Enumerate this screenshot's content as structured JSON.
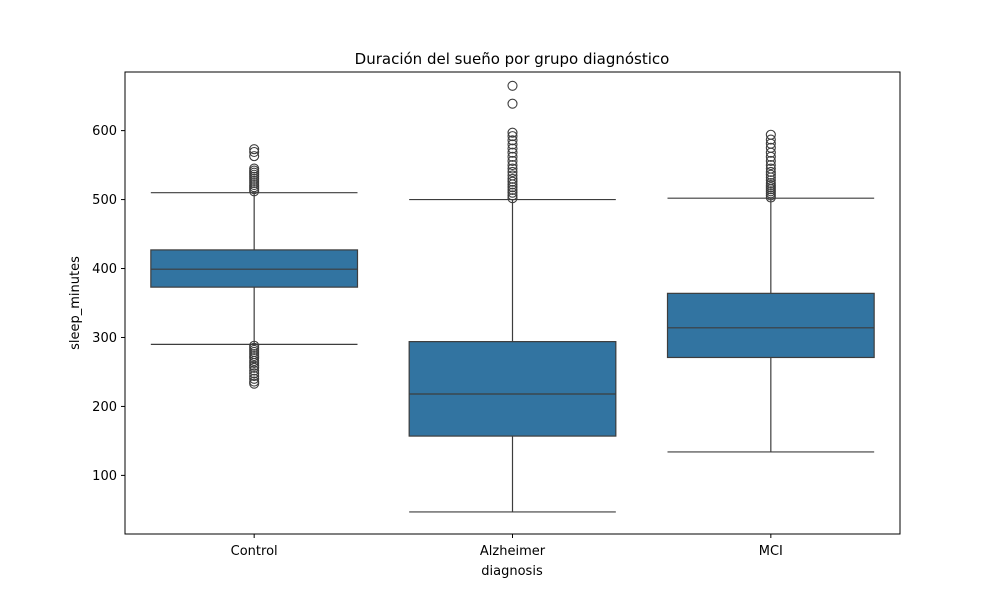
{
  "chart_data": {
    "type": "box",
    "title": "Duración del sueño por grupo diagnóstico",
    "xlabel": "diagnosis",
    "ylabel": "sleep_minutes",
    "ylim": [
      15,
      685
    ],
    "yticks": [
      100,
      200,
      300,
      400,
      500,
      600
    ],
    "grid": false,
    "legend": "none",
    "box_color": "#3274a1",
    "line_color": "#3d3d3d",
    "categories": [
      "Control",
      "Alzheimer",
      "MCI"
    ],
    "boxes": [
      {
        "category": "Control",
        "whisker_low": 290,
        "q1": 373,
        "median": 399,
        "q3": 427,
        "whisker_high": 510,
        "outliers": [
          233,
          236,
          240,
          244,
          248,
          252,
          256,
          259,
          263,
          266,
          270,
          273,
          276,
          279,
          282,
          285,
          288,
          512,
          515,
          518,
          521,
          524,
          527,
          530,
          533,
          536,
          539,
          542,
          545,
          563,
          569,
          573
        ]
      },
      {
        "category": "Alzheimer",
        "whisker_low": 47,
        "q1": 157,
        "median": 218,
        "q3": 294,
        "whisker_high": 500,
        "outliers": [
          502,
          506,
          510,
          514,
          518,
          522,
          526,
          530,
          535,
          540,
          545,
          550,
          556,
          562,
          568,
          574,
          580,
          586,
          592,
          597,
          639,
          665
        ]
      },
      {
        "category": "MCI",
        "whisker_low": 134,
        "q1": 271,
        "median": 314,
        "q3": 364,
        "whisker_high": 502,
        "outliers": [
          503,
          506,
          509,
          512,
          515,
          518,
          521,
          524,
          528,
          532,
          536,
          540,
          545,
          550,
          556,
          562,
          568,
          575,
          581,
          587,
          594
        ]
      }
    ]
  }
}
